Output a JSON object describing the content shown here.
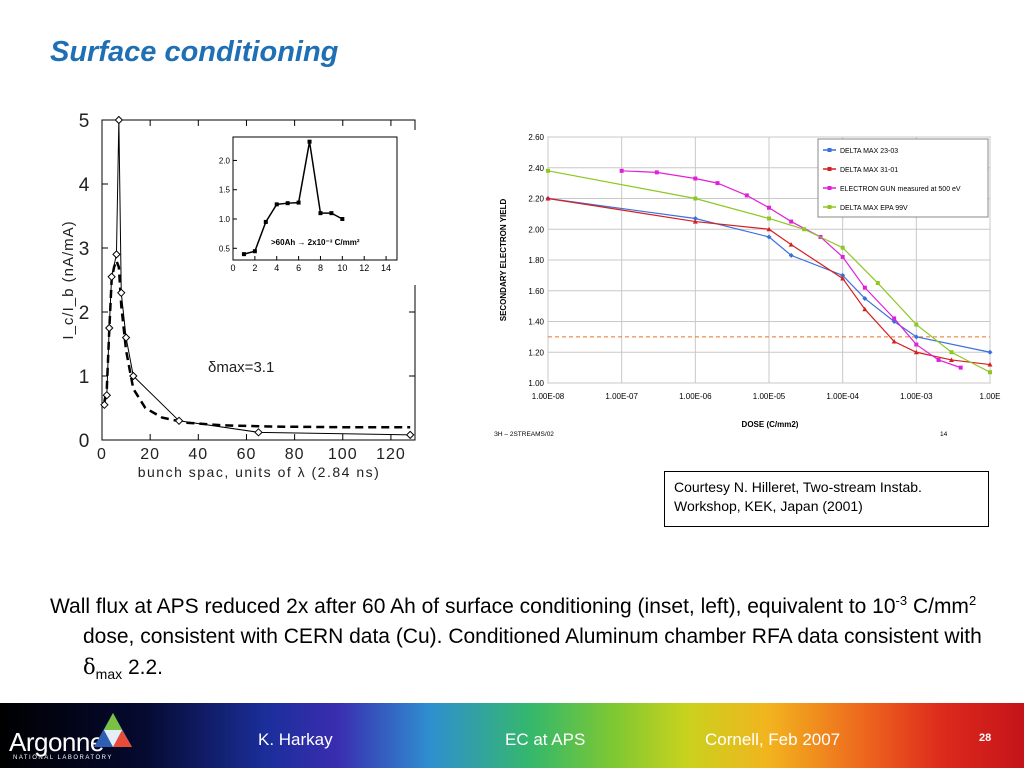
{
  "title": "Surface conditioning",
  "body_text": {
    "p1": "Wall flux at APS reduced 2x after 60 Ah of surface conditioning (inset, left), equivalent to 10",
    "p1_sup": "-3",
    "p2": " C/mm",
    "p2_sup": "2",
    "p3": " dose, consistent with CERN data (Cu). Conditioned Aluminum chamber RFA data consistent with ",
    "delta": "δ",
    "delta_sub": "max",
    "p4": " 2.2."
  },
  "courtesy": {
    "line1": "Courtesy N. Hilleret, Two-stream Instab.",
    "line2": "Workshop, KEK, Japan (2001)"
  },
  "footer": {
    "logo_main": "Argonne",
    "logo_sub": "NATIONAL LABORATORY",
    "author": "K. Harkay",
    "talk": "EC at APS",
    "venue": "Cornell, Feb 2007",
    "page": "28"
  },
  "colors": {
    "title": "#1f6fb5",
    "delta_23_03": "#3b6fdc",
    "delta_31_01": "#d42020",
    "electron_gun": "#e020d8",
    "delta_epa": "#8cc820",
    "threshold": "#f07020"
  },
  "chart_data": [
    {
      "type": "line",
      "xlabel": "bunch spac, units of λ (2.84 ns)",
      "ylabel": "I_c/I_b (nA/mA)",
      "xlim": [
        0,
        130
      ],
      "ylim": [
        0,
        5
      ],
      "x_ticks": [
        "0",
        "20",
        "40",
        "60",
        "80",
        "100",
        "120"
      ],
      "y_ticks": [
        "0",
        "1",
        "2",
        "3",
        "4",
        "5"
      ],
      "annotation": "δmax=3.1",
      "series": [
        {
          "style": "solid with diamond markers",
          "x": [
            1,
            2,
            3,
            4,
            6,
            7,
            8,
            10,
            13,
            32,
            65,
            128
          ],
          "y": [
            0.55,
            0.7,
            1.75,
            2.55,
            2.9,
            5.0,
            2.3,
            1.6,
            1.0,
            0.3,
            0.12,
            0.08
          ]
        },
        {
          "style": "dashed",
          "x": [
            1,
            2,
            3,
            4,
            5,
            6,
            7,
            8,
            10,
            13,
            18,
            25,
            35,
            50,
            70,
            100,
            128
          ],
          "y": [
            0.6,
            0.8,
            1.7,
            2.5,
            2.7,
            2.8,
            2.7,
            2.1,
            1.4,
            0.8,
            0.5,
            0.35,
            0.27,
            0.23,
            0.21,
            0.2,
            0.2
          ]
        }
      ],
      "inset": {
        "xlim": [
          0,
          15
        ],
        "ylim": [
          0.3,
          2.4
        ],
        "x_ticks": [
          "0",
          "2",
          "4",
          "6",
          "8",
          "10",
          "12",
          "14"
        ],
        "y_ticks": [
          "0.5",
          "1.0",
          "1.5",
          "2.0"
        ],
        "annotation": ">60Ah → 2x10⁻³ C/mm²",
        "x": [
          1,
          2,
          3,
          4,
          5,
          6,
          7,
          8,
          9,
          10
        ],
        "y": [
          0.4,
          0.45,
          0.95,
          1.25,
          1.27,
          1.28,
          2.32,
          1.1,
          1.1,
          1.0
        ]
      }
    },
    {
      "type": "line",
      "xlabel": "DOSE (C/mm2)",
      "ylabel": "SECONDARY ELECTRON YIELD",
      "x_scale": "log",
      "xlim": [
        "1.00E-08",
        "1.00E-02"
      ],
      "ylim": [
        1.0,
        2.6
      ],
      "x_ticks": [
        "1.00E-08",
        "1.00E-07",
        "1.00E-06",
        "1.00E-05",
        "1.00E-04",
        "1.00E-03",
        "1.00E"
      ],
      "y_ticks": [
        "1.00",
        "1.20",
        "1.40",
        "1.60",
        "1.80",
        "2.00",
        "2.20",
        "2.40",
        "2.60"
      ],
      "legend_position": "top-right",
      "footnote_left": "ЗН – 2STREAMS/02",
      "footnote_right": "14",
      "threshold_y": 1.3,
      "series": [
        {
          "name": "DELTA MAX 23-03",
          "color": "#3b6fdc",
          "x": [
            1e-08,
            1e-06,
            1e-05,
            2e-05,
            0.0001,
            0.0002,
            0.0005,
            0.001,
            0.01
          ],
          "y": [
            2.2,
            2.07,
            1.95,
            1.83,
            1.7,
            1.55,
            1.4,
            1.3,
            1.2
          ]
        },
        {
          "name": "DELTA MAX 31-01",
          "color": "#d42020",
          "x": [
            1e-08,
            1e-06,
            1e-05,
            2e-05,
            0.0001,
            0.0002,
            0.0005,
            0.001,
            0.003,
            0.01
          ],
          "y": [
            2.2,
            2.05,
            2.0,
            1.9,
            1.68,
            1.48,
            1.27,
            1.2,
            1.15,
            1.12
          ]
        },
        {
          "name": "ELECTRON GUN  measured at 500 eV",
          "color": "#e020d8",
          "x": [
            1e-07,
            3e-07,
            1e-06,
            2e-06,
            5e-06,
            1e-05,
            2e-05,
            5e-05,
            0.0001,
            0.0002,
            0.0005,
            0.001,
            0.002,
            0.004
          ],
          "y": [
            2.38,
            2.37,
            2.33,
            2.3,
            2.22,
            2.14,
            2.05,
            1.95,
            1.82,
            1.62,
            1.42,
            1.25,
            1.15,
            1.1
          ]
        },
        {
          "name": "DELTA MAX EPA 99V",
          "color": "#8cc820",
          "x": [
            1e-08,
            1e-06,
            1e-05,
            3e-05,
            0.0001,
            0.0003,
            0.001,
            0.003,
            0.01
          ],
          "y": [
            2.38,
            2.2,
            2.07,
            2.0,
            1.88,
            1.65,
            1.38,
            1.2,
            1.07
          ]
        }
      ]
    }
  ]
}
